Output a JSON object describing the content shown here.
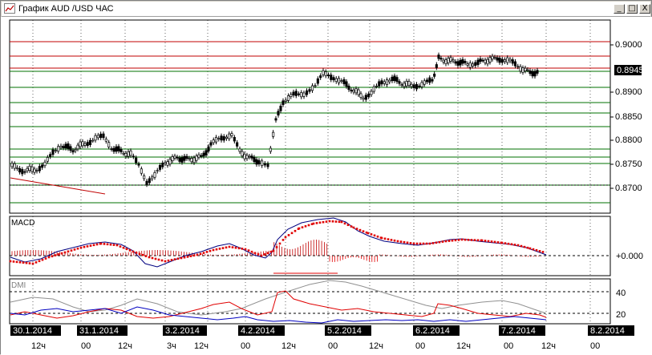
{
  "window": {
    "title": "График AUD /USD  ЧАС",
    "btn_min": "_",
    "btn_max": "□",
    "btn_close": "X"
  },
  "price_panel": {
    "current_price": "0.8945",
    "y_ticks": [
      "0.9000",
      "0.8950",
      "0.8900",
      "0.8850",
      "0.8800",
      "0.8750",
      "0.8700"
    ]
  },
  "macd_panel": {
    "label": "MACD",
    "zero_label": "+0.000"
  },
  "dmi_panel": {
    "label": "DMI",
    "y_ticks": [
      "40",
      "20"
    ]
  },
  "time_axis": {
    "dates": [
      "30.1.2014",
      "31.1.2014",
      "3.2.2014",
      "4.2.2014",
      "5.2.2014",
      "6.2.2014",
      "7.2.2014",
      "8.2.2014"
    ],
    "hours": [
      "12ч",
      "00",
      "12ч",
      "3ч",
      "12ч",
      "00",
      "12ч",
      "00",
      "12ч",
      "00",
      "12ч",
      "00",
      "12ч",
      "00"
    ]
  },
  "colors": {
    "red_line": "#c00000",
    "green_line": "#007000",
    "macd_line": "#000080",
    "signal": "#e00000",
    "dmi_plus": "#0000c0",
    "dmi_minus": "#e00000",
    "adx": "#909090",
    "date_label_bg": "#000000"
  }
}
